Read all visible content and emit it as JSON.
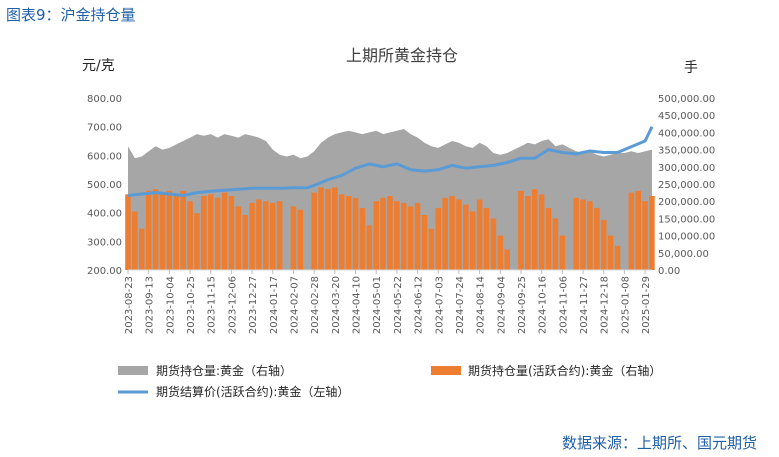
{
  "figure_caption": "图表9：沪金持仓量",
  "source_note": "数据来源：上期所、国元期货",
  "colors": {
    "total_oi": "#a6a6a6",
    "active_oi": "#ed7d31",
    "price": "#5b9bd5"
  },
  "chart_data": {
    "type": "bar",
    "title": "上期所黄金持仓",
    "ylabel_left": "元/克",
    "ylabel_right": "手",
    "ylim_left": [
      200,
      800
    ],
    "ylim_right": [
      0,
      500000
    ],
    "yticks_left": [
      "800.00",
      "700.00",
      "600.00",
      "500.00",
      "400.00",
      "300.00",
      "200.00"
    ],
    "yticks_right": [
      "500,000.00",
      "450,000.00",
      "400,000.00",
      "350,000.00",
      "300,000.00",
      "250,000.00",
      "200,000.00",
      "150,000.00",
      "100,000.00",
      "50,000.00",
      "0.00"
    ],
    "x_tick_labels": [
      "2023-08-23",
      "2023-09-13",
      "2023-10-04",
      "2023-10-25",
      "2023-11-15",
      "2023-12-06",
      "2023-12-27",
      "2024-01-17",
      "2024-02-07",
      "2024-02-28",
      "2024-03-20",
      "2024-04-10",
      "2024-05-01",
      "2024-05-22",
      "2024-06-12",
      "2024-07-03",
      "2024-07-24",
      "2024-08-14",
      "2024-09-04",
      "2024-09-25",
      "2024-10-16",
      "2024-11-06",
      "2024-11-27",
      "2024-12-18",
      "2025-01-08",
      "2025-01-29"
    ],
    "legend": [
      "期货持仓量:黄金（右轴）",
      "期货持仓量(活跃合约):黄金（右轴）",
      "期货结算价(活跃合约):黄金（左轴）"
    ],
    "series": [
      {
        "name": "期货持仓量:黄金（右轴）",
        "type": "area",
        "axis": "right",
        "points": [
          [
            "2023-08-23",
            360000
          ],
          [
            "2023-08-30",
            325000
          ],
          [
            "2023-09-06",
            330000
          ],
          [
            "2023-09-13",
            345000
          ],
          [
            "2023-09-20",
            360000
          ],
          [
            "2023-09-27",
            350000
          ],
          [
            "2023-10-04",
            355000
          ],
          [
            "2023-10-11",
            365000
          ],
          [
            "2023-10-18",
            375000
          ],
          [
            "2023-10-25",
            385000
          ],
          [
            "2023-11-01",
            395000
          ],
          [
            "2023-11-08",
            390000
          ],
          [
            "2023-11-15",
            395000
          ],
          [
            "2023-11-22",
            385000
          ],
          [
            "2023-11-29",
            395000
          ],
          [
            "2023-12-06",
            390000
          ],
          [
            "2023-12-13",
            385000
          ],
          [
            "2023-12-20",
            395000
          ],
          [
            "2023-12-27",
            390000
          ],
          [
            "2024-01-03",
            385000
          ],
          [
            "2024-01-10",
            375000
          ],
          [
            "2024-01-17",
            350000
          ],
          [
            "2024-01-24",
            335000
          ],
          [
            "2024-01-31",
            330000
          ],
          [
            "2024-02-07",
            335000
          ],
          [
            "2024-02-14",
            325000
          ],
          [
            "2024-02-21",
            330000
          ],
          [
            "2024-02-28",
            345000
          ],
          [
            "2024-03-06",
            370000
          ],
          [
            "2024-03-13",
            385000
          ],
          [
            "2024-03-20",
            395000
          ],
          [
            "2024-03-27",
            400000
          ],
          [
            "2024-04-03",
            405000
          ],
          [
            "2024-04-10",
            400000
          ],
          [
            "2024-04-17",
            395000
          ],
          [
            "2024-04-24",
            400000
          ],
          [
            "2024-05-01",
            405000
          ],
          [
            "2024-05-08",
            395000
          ],
          [
            "2024-05-15",
            400000
          ],
          [
            "2024-05-22",
            405000
          ],
          [
            "2024-05-29",
            410000
          ],
          [
            "2024-06-05",
            395000
          ],
          [
            "2024-06-12",
            385000
          ],
          [
            "2024-06-19",
            370000
          ],
          [
            "2024-06-26",
            360000
          ],
          [
            "2024-07-03",
            355000
          ],
          [
            "2024-07-10",
            365000
          ],
          [
            "2024-07-17",
            375000
          ],
          [
            "2024-07-24",
            370000
          ],
          [
            "2024-07-31",
            360000
          ],
          [
            "2024-08-07",
            355000
          ],
          [
            "2024-08-14",
            370000
          ],
          [
            "2024-08-21",
            360000
          ],
          [
            "2024-08-28",
            340000
          ],
          [
            "2024-09-04",
            335000
          ],
          [
            "2024-09-11",
            340000
          ],
          [
            "2024-09-18",
            350000
          ],
          [
            "2024-09-25",
            360000
          ],
          [
            "2024-10-02",
            370000
          ],
          [
            "2024-10-09",
            365000
          ],
          [
            "2024-10-16",
            375000
          ],
          [
            "2024-10-23",
            380000
          ],
          [
            "2024-10-30",
            360000
          ],
          [
            "2024-11-06",
            365000
          ],
          [
            "2024-11-13",
            355000
          ],
          [
            "2024-11-20",
            345000
          ],
          [
            "2024-11-27",
            340000
          ],
          [
            "2024-12-04",
            345000
          ],
          [
            "2024-12-11",
            335000
          ],
          [
            "2024-12-18",
            330000
          ],
          [
            "2024-12-25",
            335000
          ],
          [
            "2025-01-01",
            340000
          ],
          [
            "2025-01-08",
            340000
          ],
          [
            "2025-01-15",
            345000
          ],
          [
            "2025-01-22",
            340000
          ],
          [
            "2025-01-29",
            345000
          ],
          [
            "2025-02-05",
            350000
          ]
        ]
      },
      {
        "name": "期货持仓量(活跃合约):黄金（右轴）",
        "type": "bar",
        "axis": "right",
        "points": [
          [
            "2023-08-23",
            220000
          ],
          [
            "2023-08-30",
            170000
          ],
          [
            "2023-09-06",
            120000
          ],
          [
            "2023-09-13",
            230000
          ],
          [
            "2023-09-20",
            235000
          ],
          [
            "2023-09-27",
            225000
          ],
          [
            "2023-10-04",
            230000
          ],
          [
            "2023-10-11",
            215000
          ],
          [
            "2023-10-18",
            230000
          ],
          [
            "2023-10-25",
            200000
          ],
          [
            "2023-11-01",
            165000
          ],
          [
            "2023-11-08",
            215000
          ],
          [
            "2023-11-15",
            220000
          ],
          [
            "2023-11-22",
            210000
          ],
          [
            "2023-11-29",
            225000
          ],
          [
            "2023-12-06",
            215000
          ],
          [
            "2023-12-13",
            185000
          ],
          [
            "2023-12-20",
            160000
          ],
          [
            "2023-12-27",
            195000
          ],
          [
            "2024-01-03",
            205000
          ],
          [
            "2024-01-10",
            200000
          ],
          [
            "2024-01-17",
            195000
          ],
          [
            "2024-01-24",
            200000
          ],
          [
            "2024-01-31",
            0
          ],
          [
            "2024-02-07",
            185000
          ],
          [
            "2024-02-14",
            175000
          ],
          [
            "2024-02-21",
            0
          ],
          [
            "2024-02-28",
            225000
          ],
          [
            "2024-03-06",
            240000
          ],
          [
            "2024-03-13",
            235000
          ],
          [
            "2024-03-20",
            240000
          ],
          [
            "2024-03-27",
            220000
          ],
          [
            "2024-04-03",
            215000
          ],
          [
            "2024-04-10",
            210000
          ],
          [
            "2024-04-17",
            180000
          ],
          [
            "2024-04-24",
            130000
          ],
          [
            "2024-05-01",
            200000
          ],
          [
            "2024-05-08",
            210000
          ],
          [
            "2024-05-15",
            215000
          ],
          [
            "2024-05-22",
            200000
          ],
          [
            "2024-05-29",
            195000
          ],
          [
            "2024-06-05",
            185000
          ],
          [
            "2024-06-12",
            195000
          ],
          [
            "2024-06-19",
            160000
          ],
          [
            "2024-06-26",
            120000
          ],
          [
            "2024-07-03",
            180000
          ],
          [
            "2024-07-10",
            210000
          ],
          [
            "2024-07-17",
            215000
          ],
          [
            "2024-07-24",
            205000
          ],
          [
            "2024-07-31",
            190000
          ],
          [
            "2024-08-07",
            170000
          ],
          [
            "2024-08-14",
            205000
          ],
          [
            "2024-08-21",
            180000
          ],
          [
            "2024-08-28",
            150000
          ],
          [
            "2024-09-04",
            100000
          ],
          [
            "2024-09-11",
            60000
          ],
          [
            "2024-09-18",
            0
          ],
          [
            "2024-09-25",
            230000
          ],
          [
            "2024-10-02",
            215000
          ],
          [
            "2024-10-09",
            235000
          ],
          [
            "2024-10-16",
            220000
          ],
          [
            "2024-10-23",
            180000
          ],
          [
            "2024-10-30",
            150000
          ],
          [
            "2024-11-06",
            100000
          ],
          [
            "2024-11-13",
            0
          ],
          [
            "2024-11-20",
            210000
          ],
          [
            "2024-11-27",
            205000
          ],
          [
            "2024-12-04",
            200000
          ],
          [
            "2024-12-11",
            180000
          ],
          [
            "2024-12-18",
            145000
          ],
          [
            "2024-12-25",
            100000
          ],
          [
            "2025-01-01",
            70000
          ],
          [
            "2025-01-08",
            0
          ],
          [
            "2025-01-15",
            225000
          ],
          [
            "2025-01-22",
            230000
          ],
          [
            "2025-01-29",
            200000
          ],
          [
            "2025-02-05",
            215000
          ]
        ]
      },
      {
        "name": "期货结算价(活跃合约):黄金（左轴）",
        "type": "line",
        "axis": "left",
        "points": [
          [
            "2023-08-23",
            460
          ],
          [
            "2023-09-06",
            465
          ],
          [
            "2023-09-20",
            470
          ],
          [
            "2023-10-04",
            465
          ],
          [
            "2023-10-18",
            460
          ],
          [
            "2023-11-01",
            470
          ],
          [
            "2023-11-15",
            475
          ],
          [
            "2023-11-29",
            478
          ],
          [
            "2023-12-13",
            482
          ],
          [
            "2023-12-27",
            485
          ],
          [
            "2024-01-10",
            485
          ],
          [
            "2024-01-24",
            485
          ],
          [
            "2024-02-07",
            487
          ],
          [
            "2024-02-21",
            487
          ],
          [
            "2024-02-28",
            495
          ],
          [
            "2024-03-13",
            515
          ],
          [
            "2024-03-27",
            530
          ],
          [
            "2024-04-10",
            555
          ],
          [
            "2024-04-24",
            570
          ],
          [
            "2024-05-08",
            560
          ],
          [
            "2024-05-22",
            570
          ],
          [
            "2024-06-05",
            550
          ],
          [
            "2024-06-19",
            545
          ],
          [
            "2024-07-03",
            550
          ],
          [
            "2024-07-17",
            565
          ],
          [
            "2024-07-31",
            555
          ],
          [
            "2024-08-14",
            560
          ],
          [
            "2024-08-28",
            565
          ],
          [
            "2024-09-11",
            575
          ],
          [
            "2024-09-25",
            590
          ],
          [
            "2024-10-09",
            590
          ],
          [
            "2024-10-23",
            620
          ],
          [
            "2024-11-06",
            610
          ],
          [
            "2024-11-20",
            605
          ],
          [
            "2024-12-04",
            615
          ],
          [
            "2024-12-18",
            610
          ],
          [
            "2025-01-01",
            610
          ],
          [
            "2025-01-15",
            630
          ],
          [
            "2025-01-29",
            650
          ],
          [
            "2025-02-05",
            700
          ]
        ]
      }
    ]
  }
}
